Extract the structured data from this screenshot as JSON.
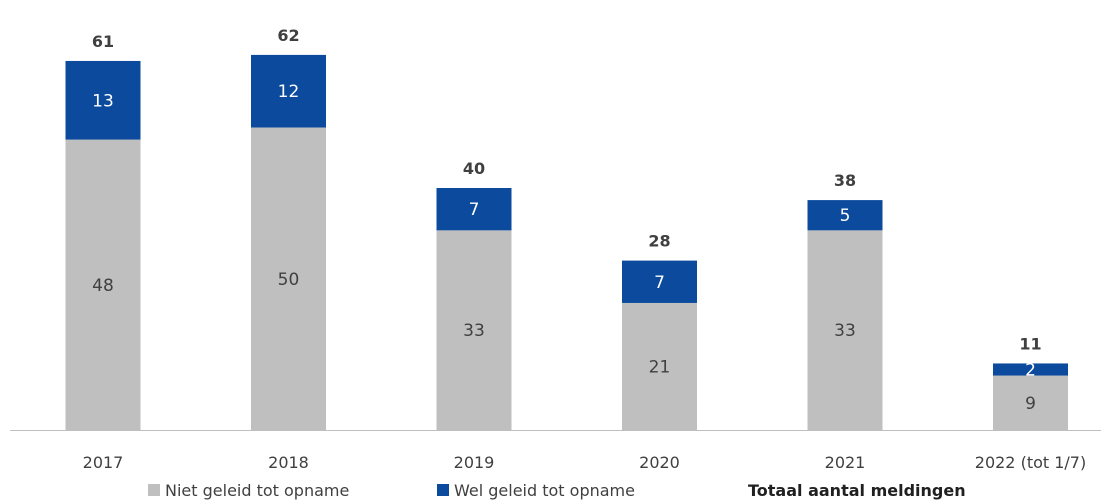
{
  "chart_data": {
    "type": "bar",
    "stacked": true,
    "title": "",
    "xlabel": "",
    "ylabel": "",
    "categories": [
      "2017",
      "2018",
      "2019",
      "2020",
      "2021",
      "2022 (tot 1/7)"
    ],
    "series": [
      {
        "name": "Niet geleid tot opname",
        "color": "#bfbfbf",
        "label_color": "#404040",
        "values": [
          48,
          50,
          33,
          21,
          33,
          9
        ]
      },
      {
        "name": "Wel geleid tot opname",
        "color": "#0b4a9c",
        "label_color": "#ffffff",
        "values": [
          13,
          12,
          7,
          7,
          5,
          2
        ]
      }
    ],
    "totals": {
      "name": "Totaal aantal meldingen",
      "values": [
        61,
        62,
        40,
        28,
        38,
        11
      ]
    },
    "ylim": [
      0,
      70
    ],
    "grid": false,
    "legend": "bottom",
    "axis_color": "#bfbfbf"
  }
}
